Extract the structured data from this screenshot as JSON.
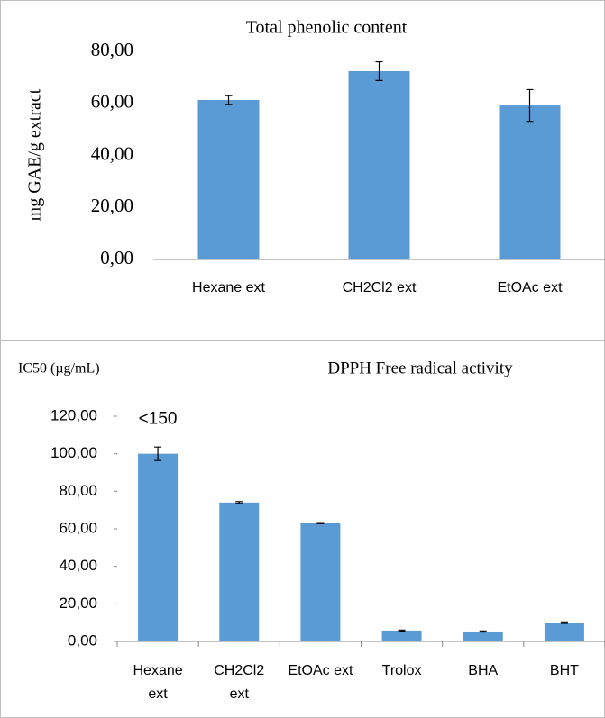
{
  "chart_data": [
    {
      "type": "bar",
      "title": "Total phenolic content",
      "y_label": "mg GAE/g extract",
      "categories": [
        "Hexane ext",
        "CH2Cl2 ext",
        "EtOAc ext"
      ],
      "values": [
        61.3,
        72.4,
        59.2
      ],
      "errors": [
        1.7,
        3.6,
        6.1
      ],
      "color": "#5b9bd5",
      "ylim": [
        0,
        80
      ],
      "yticks": [
        {
          "value": 0,
          "label": "0,00"
        },
        {
          "value": 20,
          "label": "20,00"
        },
        {
          "value": 40,
          "label": "40,00"
        },
        {
          "value": 60,
          "label": "60,00"
        },
        {
          "value": 80,
          "label": "80,00"
        }
      ]
    },
    {
      "type": "bar",
      "title": "DPPH Free radical activity",
      "y_label": "IC50 (µg/mL)",
      "annotation": "<150",
      "categories": [
        "Hexane ext",
        "CH2Cl2 ext",
        "EtOAc ext",
        "Trolox",
        "BHA",
        "BHT"
      ],
      "values": [
        100,
        74,
        63,
        5.8,
        5.3,
        10
      ],
      "errors": [
        3.6,
        0.5,
        0.3,
        0.3,
        0.3,
        0.4
      ],
      "color": "#5b9bd5",
      "ylim": [
        0,
        120
      ],
      "yticks": [
        {
          "value": 0,
          "label": "0,00"
        },
        {
          "value": 20,
          "label": "20,00"
        },
        {
          "value": 40,
          "label": "40,00"
        },
        {
          "value": 60,
          "label": "60,00"
        },
        {
          "value": 80,
          "label": "80,00"
        },
        {
          "value": 100,
          "label": "100,00"
        },
        {
          "value": 120,
          "label": "120,00"
        }
      ]
    }
  ]
}
